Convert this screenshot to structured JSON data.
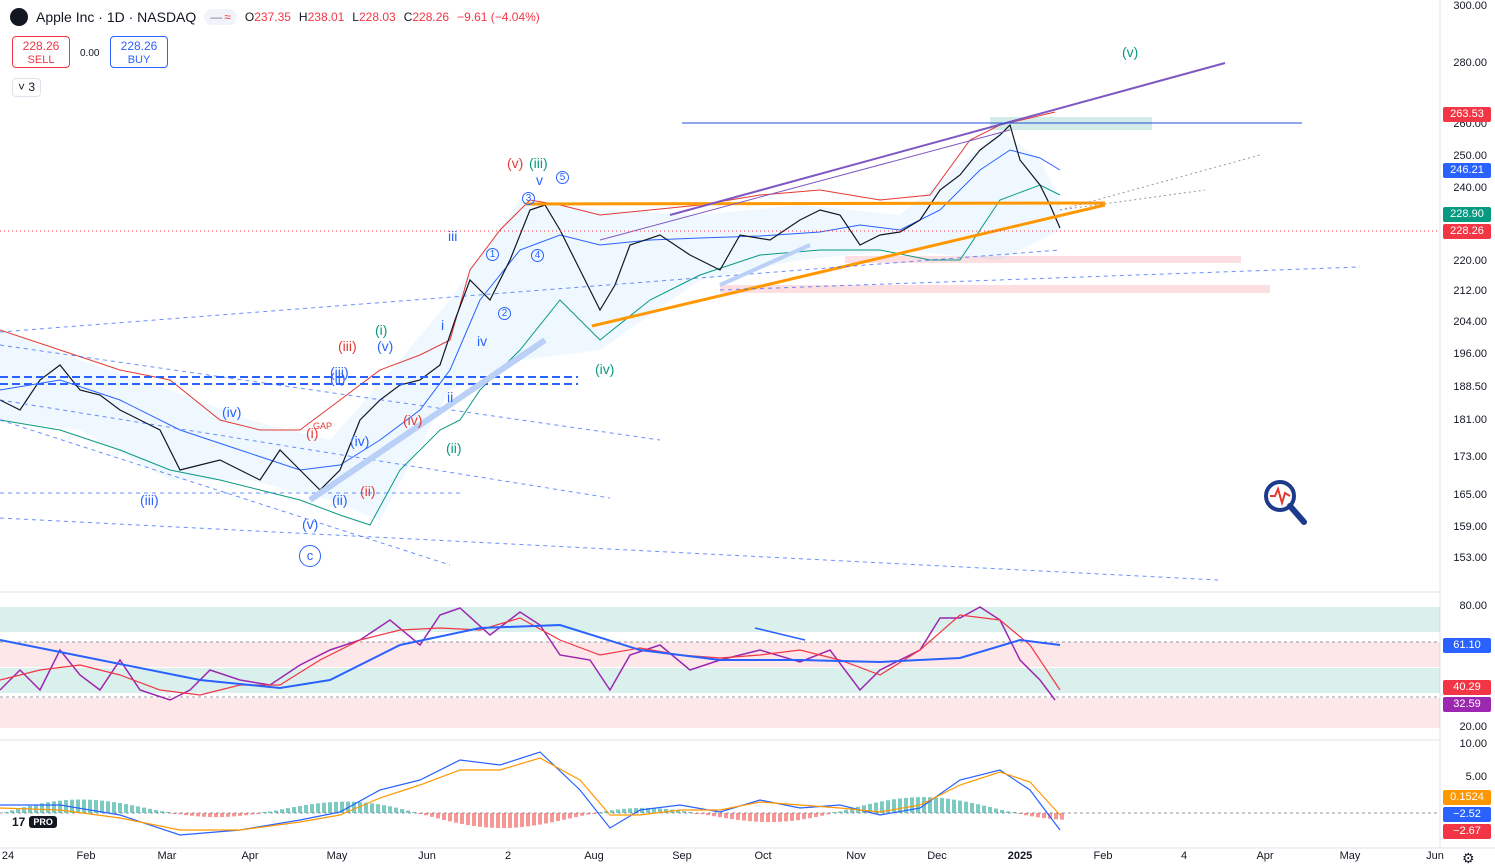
{
  "header": {
    "logo_glyph": "",
    "symbol_title": "Apple Inc · 1D · NASDAQ",
    "pill_minus": "—",
    "pill_approx": "≈",
    "ohlc": [
      {
        "key": "O",
        "value": "237.35"
      },
      {
        "key": "H",
        "value": "238.01"
      },
      {
        "key": "L",
        "value": "228.03"
      },
      {
        "key": "C",
        "value": "228.26"
      }
    ],
    "change": "−9.61 (−4.04%)"
  },
  "trade": {
    "sell_price": "228.26",
    "sell_label": "SELL",
    "spread": "0.00",
    "buy_price": "228.26",
    "buy_label": "BUY"
  },
  "indicators_toggle": "˅ 3",
  "price_axis": [
    "300.00",
    "280.00",
    "260.00",
    "250.00",
    "240.00",
    "228.90",
    "220.00",
    "212.00",
    "204.00",
    "196.00",
    "188.50",
    "181.00",
    "173.00",
    "165.00",
    "159.00",
    "153.00"
  ],
  "price_tags": [
    {
      "value": "263.53",
      "color": "#f23645"
    },
    {
      "value": "246.21",
      "color": "#2962ff"
    },
    {
      "value": "228.90",
      "color": "#089981"
    },
    {
      "value": "228.26",
      "color": "#f23645"
    }
  ],
  "rsi_axis": [
    "80.00",
    "20.00"
  ],
  "rsi_tags": [
    {
      "value": "61.10",
      "color": "#2962ff"
    },
    {
      "value": "40.29",
      "color": "#f23645"
    },
    {
      "value": "32.59",
      "color": "#9c27b0"
    }
  ],
  "macd_axis": [
    "10.00",
    "5.00"
  ],
  "macd_tags": [
    {
      "value": "0.1524",
      "color": "#ff9800"
    },
    {
      "value": "−2.52",
      "color": "#2962ff"
    },
    {
      "value": "−2.67",
      "color": "#f23645"
    }
  ],
  "time_axis": [
    "24",
    "Feb",
    "Mar",
    "Apr",
    "May",
    "Jun",
    "2",
    "Aug",
    "Sep",
    "Oct",
    "Nov",
    "Dec",
    "2025",
    "Feb",
    "4",
    "Apr",
    "May",
    "Jun"
  ],
  "waves": [
    {
      "text": "(v)",
      "color": "#089981"
    },
    {
      "text": "(v)",
      "color": "#e53935"
    },
    {
      "text": "(iii)",
      "color": "#089981"
    },
    {
      "text": "v",
      "color": "#2962ff"
    },
    {
      "text": "iii",
      "color": "#2962ff"
    },
    {
      "text": "(ii)",
      "color": "#2962ff"
    },
    {
      "text": "(i)",
      "color": "#089981"
    },
    {
      "text": "(iii)",
      "color": "#e53935"
    },
    {
      "text": "(v)",
      "color": "#2962ff"
    },
    {
      "text": "(iii)",
      "color": "#2962ff"
    },
    {
      "text": "i",
      "color": "#2962ff"
    },
    {
      "text": "iv",
      "color": "#2962ff"
    },
    {
      "text": "ii",
      "color": "#2962ff"
    },
    {
      "text": "(iv)",
      "color": "#2962ff"
    },
    {
      "text": "(iv)",
      "color": "#e53935"
    },
    {
      "text": "(iv)",
      "color": "#2962ff"
    },
    {
      "text": "(ii)",
      "color": "#089981"
    },
    {
      "text": "(i)",
      "color": "#e53935"
    },
    {
      "text": "(iii)",
      "color": "#2962ff"
    },
    {
      "text": "(ii)",
      "color": "#e53935"
    },
    {
      "text": "(ii)",
      "color": "#2962ff"
    },
    {
      "text": "(v)",
      "color": "#2962ff"
    },
    {
      "text": "(iv)",
      "color": "#089981"
    },
    {
      "text": "GAP",
      "color": "#e53935"
    }
  ],
  "circled": [
    "3",
    "5",
    "1",
    "4",
    "2",
    "c"
  ],
  "branding": {
    "logo": "17",
    "pro": "PRO"
  },
  "icons": {
    "magnifier": "magnifier-pulse-icon",
    "settings": "gear-icon"
  }
}
